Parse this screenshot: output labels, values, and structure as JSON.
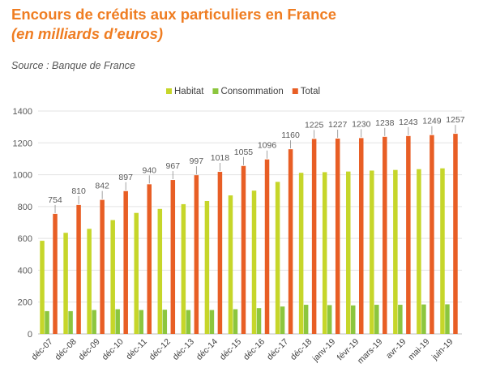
{
  "title": "Encours de crédits aux particuliers en France",
  "subtitle": "(en milliards d’euros)",
  "source": "Source : Banque de France",
  "colors": {
    "habitat": "#c6d62a",
    "consommation": "#8cc63e",
    "total": "#e85e25",
    "title": "#ef7d22"
  },
  "chart_data": {
    "type": "bar",
    "categories": [
      "déc-07",
      "déc-08",
      "déc-09",
      "déc-10",
      "déc-11",
      "déc-12",
      "déc-13",
      "déc-14",
      "déc-15",
      "déc-16",
      "déc-17",
      "déc-18",
      "janv-19",
      "févr-19",
      "mars-19",
      "avr-19",
      "mai-19",
      "juin-19"
    ],
    "series": [
      {
        "name": "Habitat",
        "values": [
          585,
          635,
          660,
          715,
          760,
          785,
          815,
          835,
          870,
          900,
          955,
          1012,
          1016,
          1020,
          1026,
          1030,
          1035,
          1040
        ]
      },
      {
        "name": "Consommation",
        "values": [
          143,
          143,
          150,
          155,
          150,
          152,
          150,
          150,
          155,
          162,
          172,
          183,
          181,
          179,
          183,
          183,
          185,
          186
        ]
      },
      {
        "name": "Total",
        "values": [
          754,
          810,
          842,
          897,
          940,
          967,
          997,
          1018,
          1055,
          1096,
          1160,
          1225,
          1227,
          1230,
          1238,
          1243,
          1249,
          1257
        ]
      }
    ],
    "total_labels": [
      "754",
      "810",
      "842",
      "897",
      "940",
      "967",
      "997",
      "1018",
      "1055",
      "1096",
      "1160",
      "1225",
      "1227",
      "1230",
      "1238",
      "1243",
      "1249",
      "1257"
    ],
    "yticks": [
      "0",
      "200",
      "400",
      "600",
      "800",
      "1000",
      "1200",
      "1400"
    ],
    "ylim": [
      0,
      1400
    ],
    "legend_position": "top-center",
    "grid": true
  }
}
